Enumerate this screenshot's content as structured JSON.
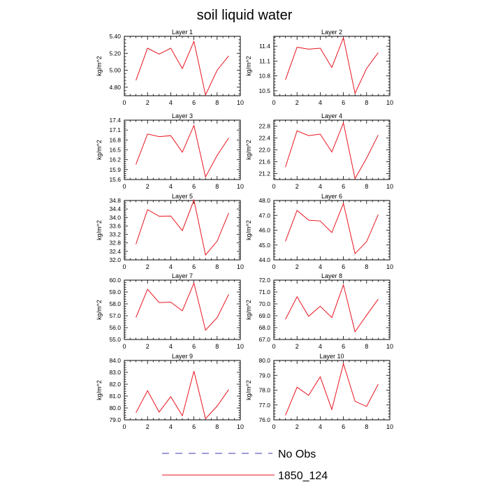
{
  "title": "soil liquid water",
  "colors": {
    "series_line": "#e8141e",
    "axis": "#000000",
    "no_obs": "#3a3aa8"
  },
  "legend": {
    "placement": "bottom-center",
    "entries": [
      {
        "label": "No Obs",
        "style": "dashed"
      },
      {
        "label": "1850_124",
        "style": "solid"
      }
    ]
  },
  "chart_data": [
    {
      "type": "line",
      "title": "Layer 1",
      "ylabel": "kg/m^2",
      "xlim": [
        0,
        10
      ],
      "ylim": [
        4.7,
        5.4
      ],
      "xticks": [
        0,
        2,
        4,
        6,
        8,
        10
      ],
      "yticks": [
        "4.80",
        "5.00",
        "5.20",
        "5.40"
      ],
      "ytick_values": [
        4.8,
        5.0,
        5.2,
        5.4
      ],
      "x": [
        1,
        2,
        3,
        4,
        5,
        6,
        7,
        8,
        9
      ],
      "values": [
        4.88,
        5.26,
        5.19,
        5.26,
        5.02,
        5.34,
        4.71,
        5.0,
        5.17
      ]
    },
    {
      "type": "line",
      "title": "Layer 2",
      "ylabel": "kg/m^2",
      "xlim": [
        0,
        10
      ],
      "ylim": [
        10.4,
        11.6
      ],
      "xticks": [
        0,
        2,
        4,
        6,
        8,
        10
      ],
      "yticks": [
        "10.5",
        "10.8",
        "11.1",
        "11.4"
      ],
      "ytick_values": [
        10.5,
        10.8,
        11.1,
        11.4
      ],
      "x": [
        1,
        2,
        3,
        4,
        5,
        6,
        7,
        8,
        9
      ],
      "values": [
        10.72,
        11.38,
        11.34,
        11.36,
        10.97,
        11.57,
        10.45,
        10.95,
        11.27
      ]
    },
    {
      "type": "line",
      "title": "Layer 3",
      "ylabel": "kg/m^2",
      "xlim": [
        0,
        10
      ],
      "ylim": [
        15.6,
        17.4
      ],
      "xticks": [
        0,
        2,
        4,
        6,
        8,
        10
      ],
      "yticks": [
        "15.6",
        "15.9",
        "16.2",
        "16.5",
        "16.8",
        "17.1",
        "17.4"
      ],
      "ytick_values": [
        15.6,
        15.9,
        16.2,
        16.5,
        16.8,
        17.1,
        17.4
      ],
      "x": [
        1,
        2,
        3,
        4,
        5,
        6,
        7,
        8,
        9
      ],
      "values": [
        16.06,
        16.98,
        16.9,
        16.93,
        16.43,
        17.24,
        15.68,
        16.33,
        16.86
      ]
    },
    {
      "type": "line",
      "title": "Layer 4",
      "ylabel": "kg/m^2",
      "xlim": [
        0,
        10
      ],
      "ylim": [
        21.0,
        23.0
      ],
      "xticks": [
        0,
        2,
        4,
        6,
        8,
        10
      ],
      "yticks": [
        "21.2",
        "21.6",
        "22.0",
        "22.4",
        "22.8"
      ],
      "ytick_values": [
        21.2,
        21.6,
        22.0,
        22.4,
        22.8
      ],
      "x": [
        1,
        2,
        3,
        4,
        5,
        6,
        7,
        8,
        9
      ],
      "values": [
        21.42,
        22.64,
        22.48,
        22.53,
        21.93,
        22.91,
        21.03,
        21.72,
        22.5
      ]
    },
    {
      "type": "line",
      "title": "Layer 5",
      "ylabel": "kg/m^2",
      "xlim": [
        0,
        10
      ],
      "ylim": [
        32.0,
        34.8
      ],
      "xticks": [
        0,
        2,
        4,
        6,
        8,
        10
      ],
      "yticks": [
        "32.0",
        "32.4",
        "32.8",
        "33.2",
        "33.6",
        "34.0",
        "34.4",
        "34.8"
      ],
      "ytick_values": [
        32.0,
        32.4,
        32.8,
        33.2,
        33.6,
        34.0,
        34.4,
        34.8
      ],
      "x": [
        1,
        2,
        3,
        4,
        5,
        6,
        7,
        8,
        9
      ],
      "values": [
        32.74,
        34.37,
        34.06,
        34.07,
        33.38,
        34.82,
        32.23,
        32.88,
        34.21
      ]
    },
    {
      "type": "line",
      "title": "Layer 6",
      "ylabel": "kg/m^2",
      "xlim": [
        0,
        10
      ],
      "ylim": [
        44.0,
        48.0
      ],
      "xticks": [
        0,
        2,
        4,
        6,
        8,
        10
      ],
      "yticks": [
        "44.0",
        "45.0",
        "46.0",
        "47.0",
        "48.0"
      ],
      "ytick_values": [
        44.0,
        45.0,
        46.0,
        47.0,
        48.0
      ],
      "x": [
        1,
        2,
        3,
        4,
        5,
        6,
        7,
        8,
        9
      ],
      "values": [
        45.25,
        47.33,
        46.68,
        46.62,
        45.84,
        47.8,
        44.42,
        45.23,
        47.05
      ]
    },
    {
      "type": "line",
      "title": "Layer 7",
      "ylabel": "kg/m^2",
      "xlim": [
        0,
        10
      ],
      "ylim": [
        55.0,
        60.0
      ],
      "xticks": [
        0,
        2,
        4,
        6,
        8,
        10
      ],
      "yticks": [
        "55.0",
        "56.0",
        "57.0",
        "58.0",
        "59.0",
        "60.0"
      ],
      "ytick_values": [
        55.0,
        56.0,
        57.0,
        58.0,
        59.0,
        60.0
      ],
      "x": [
        1,
        2,
        3,
        4,
        5,
        6,
        7,
        8,
        9
      ],
      "values": [
        56.86,
        59.23,
        58.11,
        58.15,
        57.41,
        59.75,
        55.79,
        56.84,
        58.8
      ]
    },
    {
      "type": "line",
      "title": "Layer 8",
      "ylabel": "kg/m^2",
      "xlim": [
        0,
        10
      ],
      "ylim": [
        67.0,
        72.0
      ],
      "xticks": [
        0,
        2,
        4,
        6,
        8,
        10
      ],
      "yticks": [
        "67.0",
        "68.0",
        "69.0",
        "70.0",
        "71.0",
        "72.0"
      ],
      "ytick_values": [
        67.0,
        68.0,
        69.0,
        70.0,
        71.0,
        72.0
      ],
      "x": [
        1,
        2,
        3,
        4,
        5,
        6,
        7,
        8,
        9
      ],
      "values": [
        68.7,
        70.6,
        68.95,
        69.8,
        68.85,
        71.6,
        67.65,
        69.05,
        70.4
      ]
    },
    {
      "type": "line",
      "title": "Layer 9",
      "ylabel": "kg/m^2",
      "xlim": [
        0,
        10
      ],
      "ylim": [
        79.0,
        84.0
      ],
      "xticks": [
        0,
        2,
        4,
        6,
        8,
        10
      ],
      "yticks": [
        "79.0",
        "80.0",
        "81.0",
        "82.0",
        "83.0",
        "84.0"
      ],
      "ytick_values": [
        79.0,
        80.0,
        81.0,
        82.0,
        83.0,
        84.0
      ],
      "x": [
        1,
        2,
        3,
        4,
        5,
        6,
        7,
        8,
        9
      ],
      "values": [
        79.6,
        81.45,
        79.65,
        80.95,
        79.35,
        83.1,
        79.1,
        80.15,
        81.55
      ]
    },
    {
      "type": "line",
      "title": "Layer 10",
      "ylabel": "kg/m^2",
      "xlim": [
        0,
        10
      ],
      "ylim": [
        76.0,
        80.0
      ],
      "xticks": [
        0,
        2,
        4,
        6,
        8,
        10
      ],
      "yticks": [
        "76.0",
        "77.0",
        "78.0",
        "79.0",
        "80.0"
      ],
      "ytick_values": [
        76.0,
        77.0,
        78.0,
        79.0,
        80.0
      ],
      "x": [
        1,
        2,
        3,
        4,
        5,
        6,
        7,
        8,
        9
      ],
      "values": [
        76.3,
        78.2,
        77.65,
        78.9,
        76.7,
        79.78,
        77.25,
        76.9,
        78.4
      ]
    }
  ]
}
